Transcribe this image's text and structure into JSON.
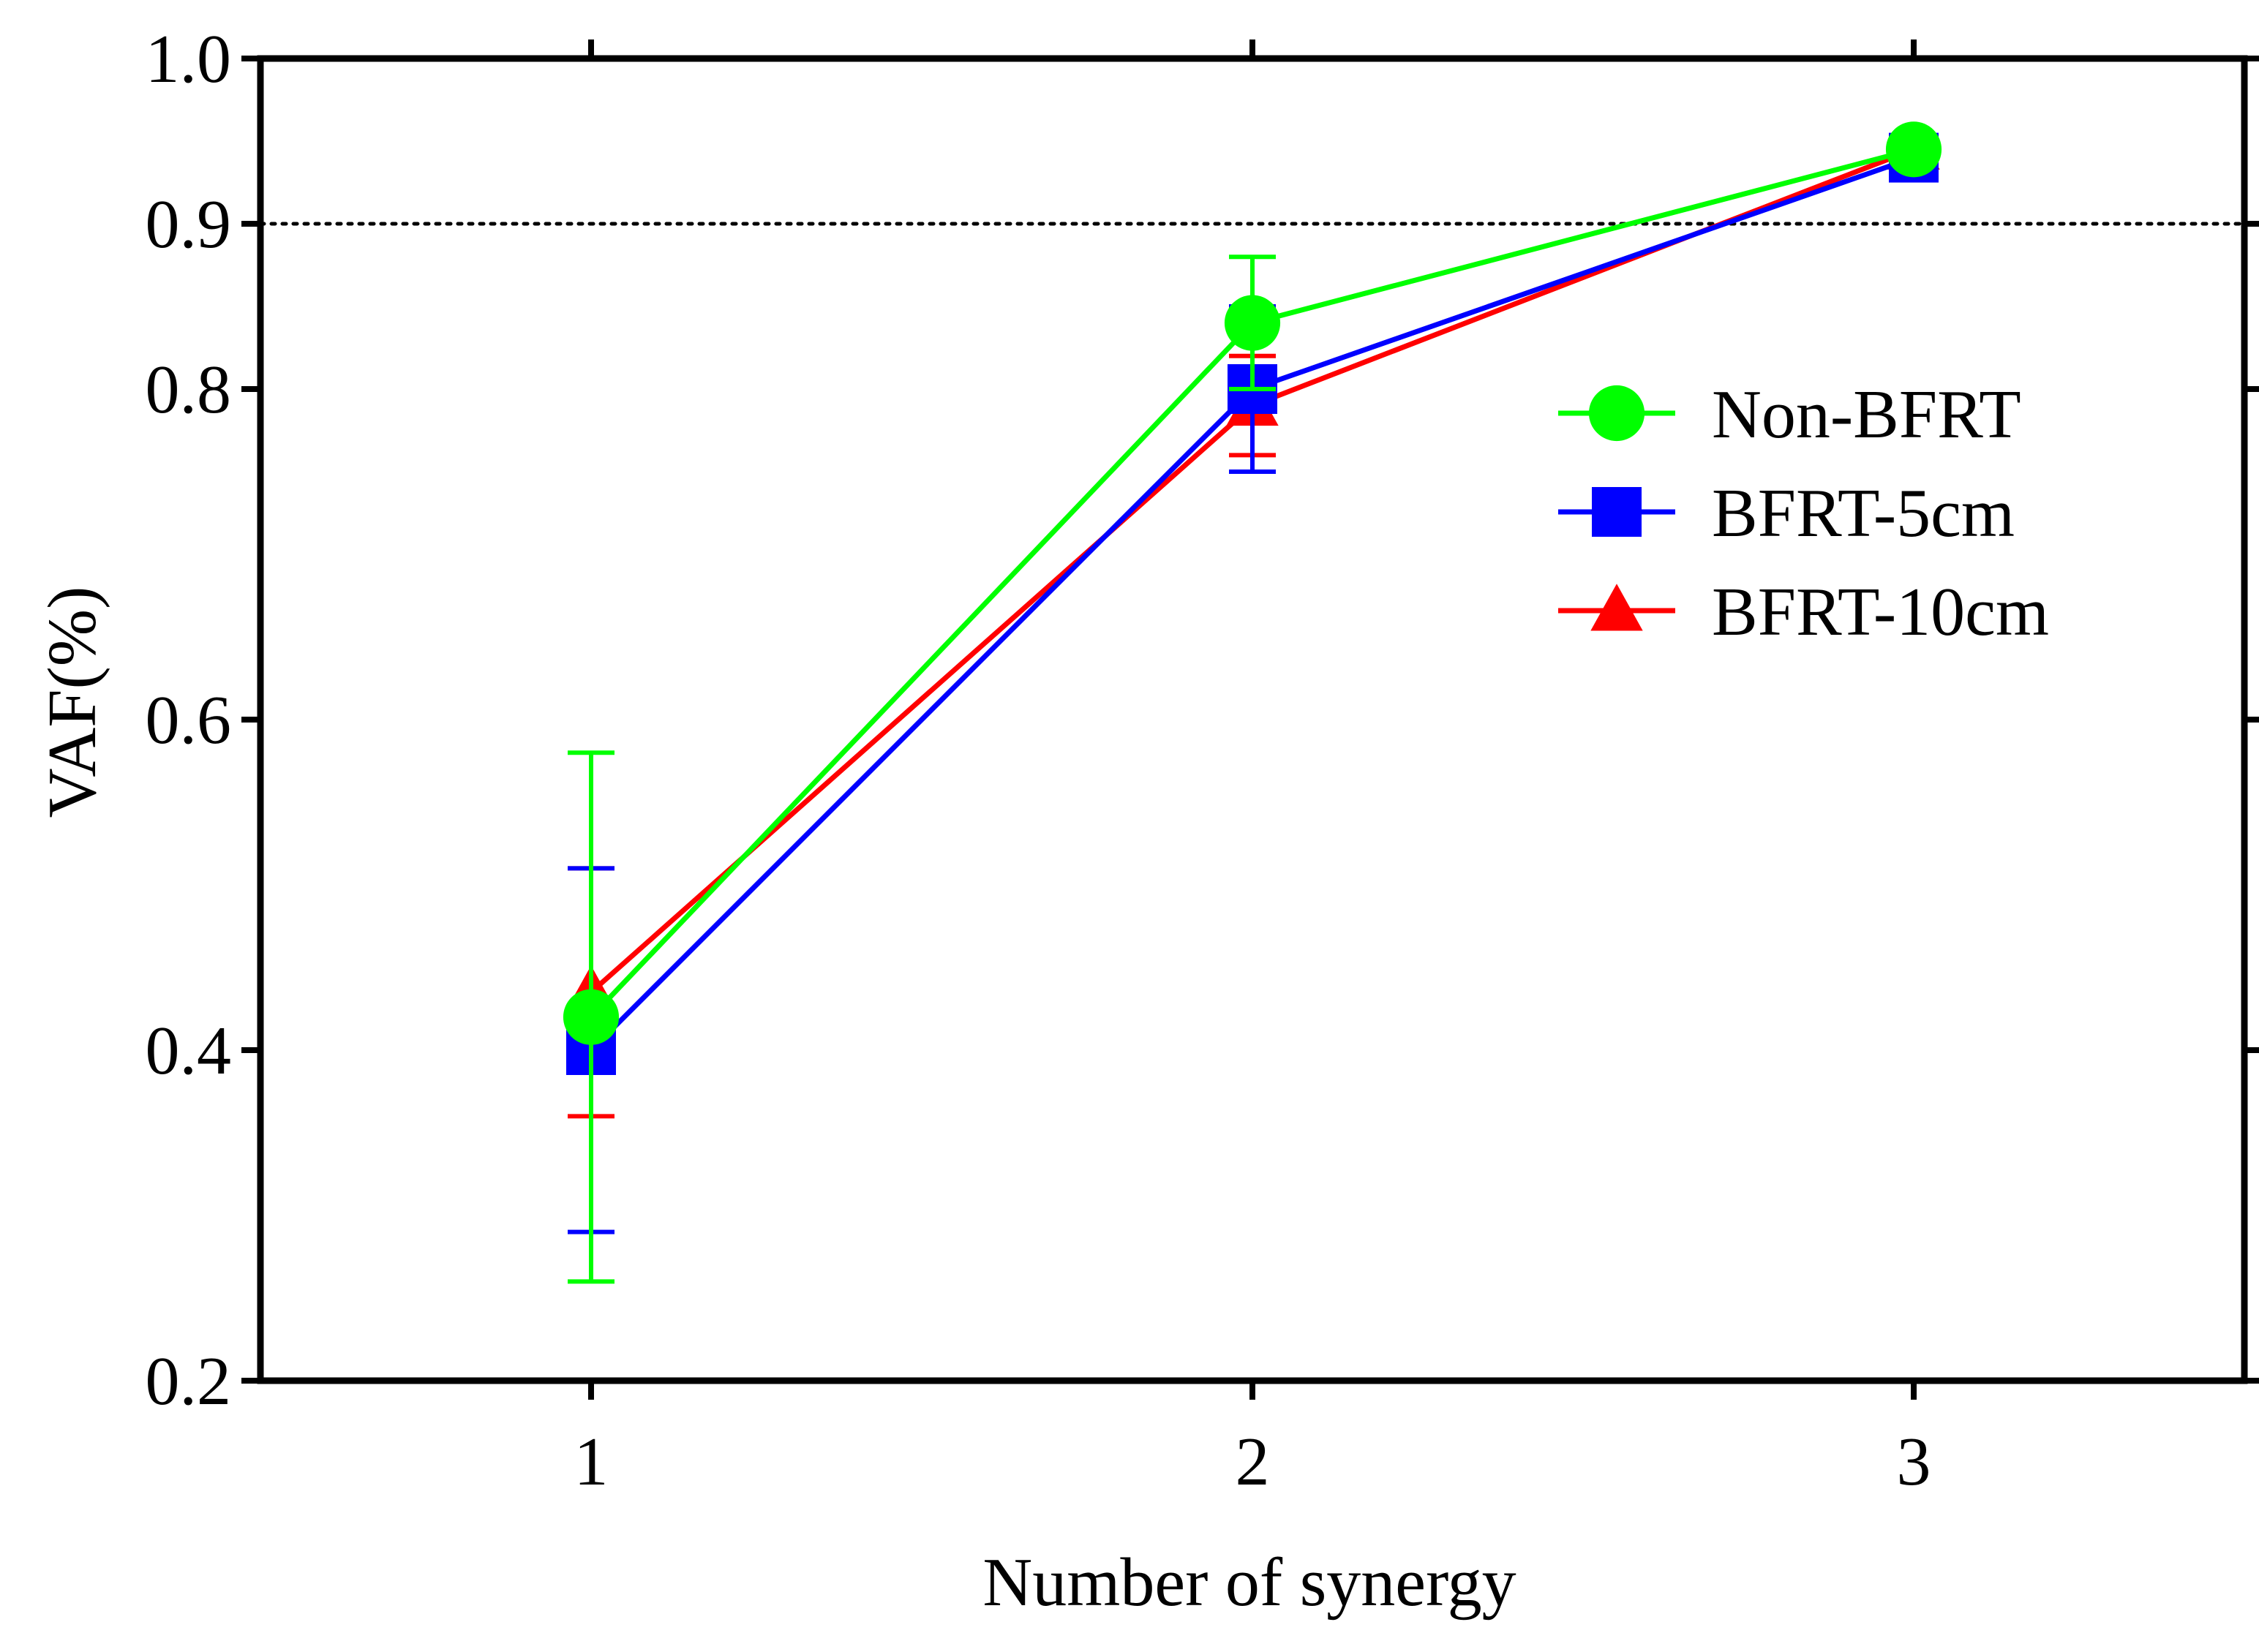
{
  "chart_data": {
    "type": "line",
    "title": "",
    "xlabel": "Number of synergy",
    "ylabel": "VAF(%)",
    "x": [
      1,
      2,
      3
    ],
    "xlim": [
      0.5,
      3.5
    ],
    "ylim": [
      0.2,
      1.0
    ],
    "xticks": [
      1,
      2,
      3
    ],
    "xtick_labels": [
      "1",
      "2",
      "3"
    ],
    "yticks": [
      0.2,
      0.4,
      0.6,
      0.8,
      0.9,
      1.0
    ],
    "ytick_labels": [
      "0.2",
      "0.4",
      "0.6",
      "0.8",
      "0.9",
      "1.0"
    ],
    "reference_line": {
      "y": 0.9,
      "style": "dotted"
    },
    "grid": false,
    "legend_position": "right",
    "series": [
      {
        "name": "BFRT-10cm",
        "marker": "triangle",
        "color": "#ff0000",
        "values": [
          0.435,
          0.79,
          0.945
        ],
        "error_low": [
          0.36,
          0.76,
          0.945
        ],
        "error_high": [
          0.51,
          0.82,
          0.945
        ]
      },
      {
        "name": "BFRT-5cm",
        "marker": "square",
        "color": "#0000ff",
        "values": [
          0.4,
          0.8,
          0.94
        ],
        "error_low": [
          0.29,
          0.75,
          0.94
        ],
        "error_high": [
          0.51,
          0.85,
          0.94
        ]
      },
      {
        "name": "Non-BFRT",
        "marker": "circle",
        "color": "#00ff00",
        "values": [
          0.42,
          0.84,
          0.945
        ],
        "error_low": [
          0.26,
          0.8,
          0.945
        ],
        "error_high": [
          0.58,
          0.88,
          0.945
        ]
      }
    ],
    "legend_order": [
      "Non-BFRT",
      "BFRT-5cm",
      "BFRT-10cm"
    ]
  }
}
